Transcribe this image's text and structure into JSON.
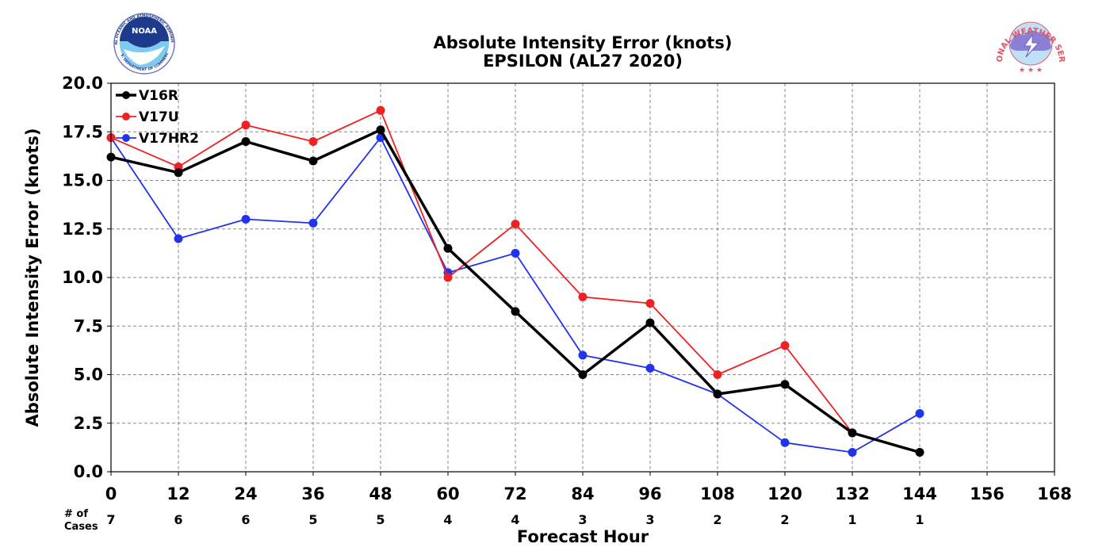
{
  "logos": {
    "left": {
      "name": "NOAA",
      "text": "NOAA",
      "ring_text": "NATIONAL OCEANIC AND ATMOSPHERIC ADMINISTRATION",
      "ring_text_bottom": "U.S. DEPARTMENT OF COMMERCE"
    },
    "right": {
      "name": "National Weather Service",
      "ring_text": "NATIONAL WEATHER SERVICE"
    }
  },
  "colors": {
    "V16R": "#000000",
    "V17U": "#ee2222",
    "V17HR2": "#2233ee"
  },
  "chart_data": {
    "type": "line",
    "title": "Absolute Intensity Error (knots)",
    "subtitle": "EPSILON (AL27 2020)",
    "xlabel": "Forecast Hour",
    "ylabel": "Absolute Intensity Error (knots)",
    "xlim": [
      0,
      168
    ],
    "ylim": [
      0,
      20
    ],
    "x_ticks": [
      "0",
      "12",
      "24",
      "36",
      "48",
      "60",
      "72",
      "84",
      "96",
      "108",
      "120",
      "132",
      "144",
      "156",
      "168"
    ],
    "y_ticks": [
      "0.0",
      "2.5",
      "5.0",
      "7.5",
      "10.0",
      "12.5",
      "15.0",
      "17.5",
      "20.0"
    ],
    "grid": true,
    "legend_position": "top-left",
    "cases_label": "# of\nCases",
    "cases_label_lines": [
      "# of",
      "Cases"
    ],
    "cases": [
      {
        "x": 0,
        "n": "7"
      },
      {
        "x": 12,
        "n": "6"
      },
      {
        "x": 24,
        "n": "6"
      },
      {
        "x": 36,
        "n": "5"
      },
      {
        "x": 48,
        "n": "5"
      },
      {
        "x": 60,
        "n": "4"
      },
      {
        "x": 72,
        "n": "4"
      },
      {
        "x": 84,
        "n": "3"
      },
      {
        "x": 96,
        "n": "3"
      },
      {
        "x": 108,
        "n": "2"
      },
      {
        "x": 120,
        "n": "2"
      },
      {
        "x": 132,
        "n": "1"
      },
      {
        "x": 144,
        "n": "1"
      }
    ],
    "series": [
      {
        "name": "V16R",
        "x": [
          0,
          12,
          24,
          36,
          48,
          60,
          72,
          84,
          96,
          108,
          120,
          132,
          144
        ],
        "values": [
          16.2,
          15.4,
          17.0,
          16.0,
          17.6,
          11.5,
          8.25,
          5.0,
          7.67,
          4.0,
          4.5,
          2.0,
          1.0
        ]
      },
      {
        "name": "V17U",
        "x": [
          0,
          12,
          24,
          36,
          48,
          60,
          72,
          84,
          96,
          108,
          120,
          132
        ],
        "values": [
          17.2,
          15.7,
          17.85,
          17.0,
          18.6,
          10.0,
          12.75,
          9.0,
          8.67,
          5.0,
          6.5,
          2.0
        ]
      },
      {
        "name": "V17HR2",
        "x": [
          0,
          12,
          24,
          36,
          48,
          60,
          72,
          84,
          96,
          108,
          120,
          132,
          144
        ],
        "values": [
          17.2,
          12.0,
          13.0,
          12.8,
          17.2,
          10.25,
          11.25,
          6.0,
          5.33,
          4.0,
          1.5,
          1.0,
          3.0
        ]
      }
    ]
  }
}
